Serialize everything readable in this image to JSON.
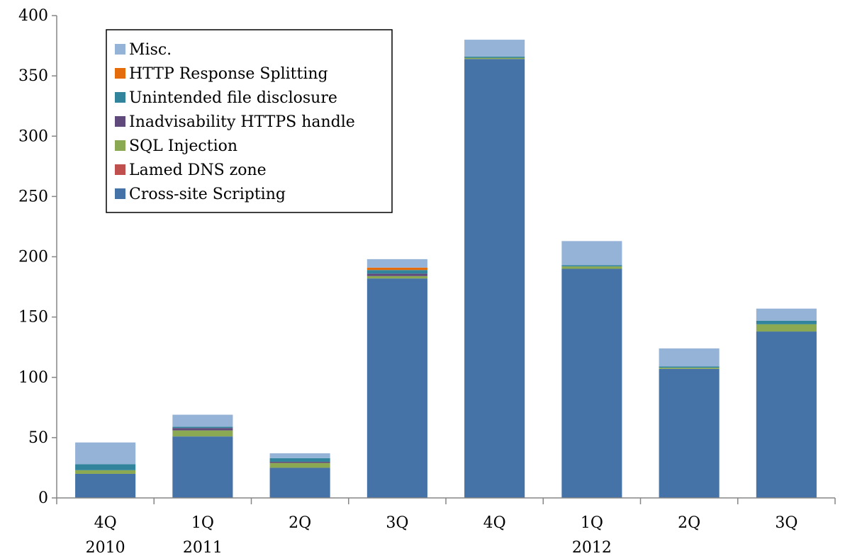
{
  "chart_data": {
    "type": "bar",
    "stacked": true,
    "title": "",
    "xlabel": "",
    "ylabel": "",
    "ylim": [
      0,
      400
    ],
    "yticks": [
      0,
      50,
      100,
      150,
      200,
      250,
      300,
      350,
      400
    ],
    "grid": false,
    "legend_position": "top-left",
    "categories": [
      "4Q",
      "1Q",
      "2Q",
      "3Q",
      "4Q",
      "1Q",
      "2Q",
      "3Q"
    ],
    "category_years": [
      "2010",
      "2011",
      "",
      "",
      "",
      "2012",
      "",
      ""
    ],
    "series": [
      {
        "name": "Cross-site Scripting",
        "color": "#4572A7",
        "values": [
          20,
          51,
          25,
          182,
          364,
          190,
          107,
          138
        ]
      },
      {
        "name": "Lamed DNS zone",
        "color": "#C0504D",
        "values": [
          0,
          0,
          0,
          0,
          0,
          0,
          0,
          0
        ]
      },
      {
        "name": "SQL Injection",
        "color": "#8BA852",
        "values": [
          3,
          5,
          4,
          2,
          1,
          2,
          1,
          6
        ]
      },
      {
        "name": "Inadvisability HTTPS handle",
        "color": "#604A7B",
        "values": [
          0,
          2,
          1,
          2,
          0,
          0,
          0,
          0
        ]
      },
      {
        "name": "Unintended file disclosure",
        "color": "#31849B",
        "values": [
          5,
          1,
          3,
          3,
          1,
          1,
          1,
          3
        ]
      },
      {
        "name": "HTTP Response Splitting",
        "color": "#E46C0A",
        "values": [
          0,
          0,
          0,
          2,
          0,
          0,
          0,
          0
        ]
      },
      {
        "name": "Misc.",
        "color": "#95B3D7",
        "values": [
          18,
          10,
          4,
          7,
          14,
          20,
          15,
          10
        ]
      }
    ]
  }
}
